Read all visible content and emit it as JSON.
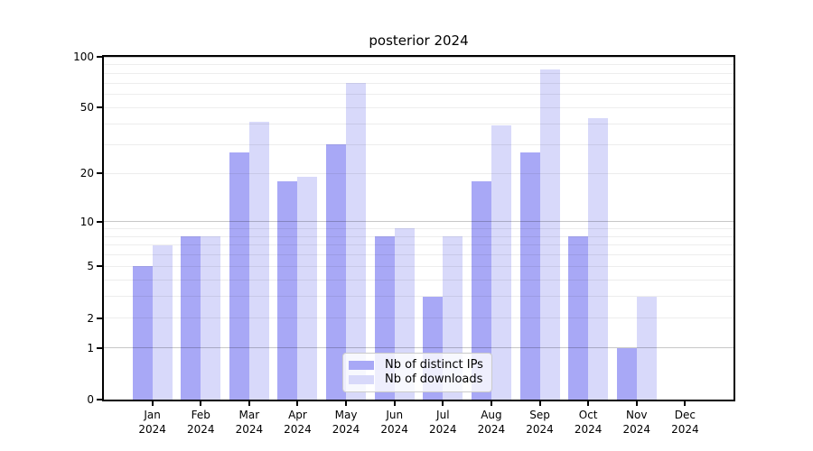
{
  "title": "posterior 2024",
  "chart_data": {
    "type": "bar",
    "title": "posterior 2024",
    "scale": "log1p",
    "ylim": [
      0,
      100
    ],
    "y_ticks": [
      0,
      1,
      2,
      5,
      10,
      20,
      50,
      100
    ],
    "grid": {
      "major": [
        1,
        10,
        100
      ],
      "minor": [
        2,
        3,
        4,
        5,
        6,
        7,
        8,
        9,
        20,
        30,
        40,
        50,
        60,
        70,
        80,
        90
      ]
    },
    "legend_position": "lower center",
    "categories": [
      "Jan 2024",
      "Feb 2024",
      "Mar 2024",
      "Apr 2024",
      "May 2024",
      "Jun 2024",
      "Jul 2024",
      "Aug 2024",
      "Sep 2024",
      "Oct 2024",
      "Nov 2024",
      "Dec 2024"
    ],
    "series": [
      {
        "name": "Nb of distinct IPs",
        "color": "#a8a8f6",
        "values": [
          5,
          8,
          27,
          18,
          30,
          8,
          3,
          18,
          27,
          8,
          1,
          0
        ]
      },
      {
        "name": "Nb of downloads",
        "color": "#d8d9fa",
        "values": [
          7,
          8,
          41,
          19,
          70,
          9,
          8,
          39,
          84,
          43,
          3,
          0
        ]
      }
    ]
  }
}
